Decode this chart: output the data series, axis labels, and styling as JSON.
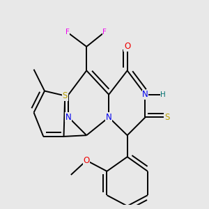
{
  "background_color": "#e8e8e8",
  "figsize": [
    3.0,
    3.0
  ],
  "dpi": 100,
  "atom_colors": {
    "C": "#000000",
    "N": "#0000ee",
    "O": "#ee0000",
    "S": "#b8a000",
    "F": "#ee00ee",
    "H": "#007070"
  },
  "bond_color": "#000000",
  "bond_width": 1.4,
  "font_size": 8.5
}
